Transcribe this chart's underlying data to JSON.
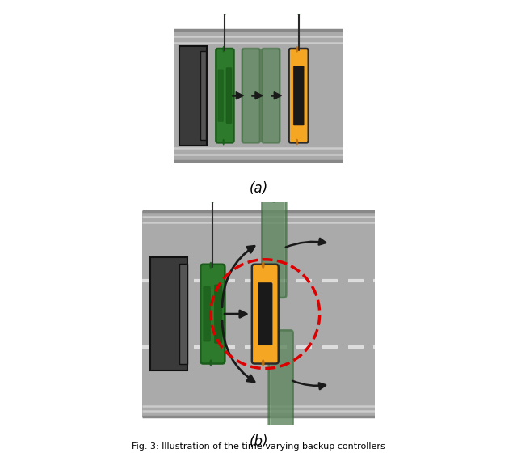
{
  "fig_width": 6.4,
  "fig_height": 5.6,
  "dpi": 100,
  "bg_color": "#ffffff",
  "road_color": "#aaaaaa",
  "road_border_light": "#cccccc",
  "road_border_dark": "#888888",
  "truck_color": "#3a3a3a",
  "truck_border": "#222222",
  "green_car_color": "#2d7a2d",
  "green_car_dark": "#1a5c1a",
  "green_car_mid": "#236b23",
  "orange_car_color": "#f5a623",
  "orange_car_border": "#2a2a2a",
  "ghost_rect_color": "#888888",
  "ghost_car_color": "#4a7a4a",
  "arrow_color": "#1a1a1a",
  "drone_color": "#2d7a2d",
  "drone_stem_color": "#2a2a2a",
  "red_circle_color": "#dd0000",
  "dash_color": "#dddddd",
  "caption_a": "(a)",
  "caption_b": "(b)",
  "figure_caption": "Fig. 3: Illustration of the time-varying backup controllers"
}
